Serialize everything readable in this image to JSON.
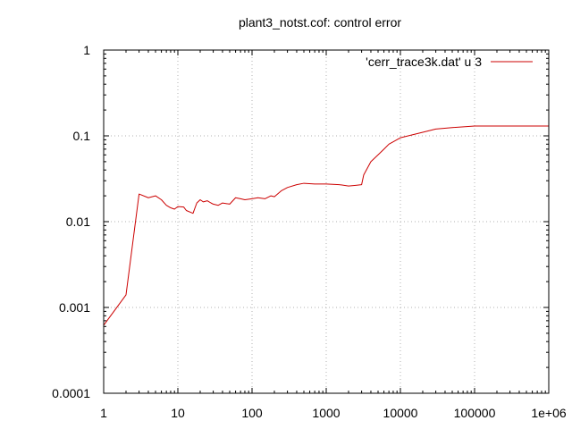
{
  "chart_data": {
    "type": "line",
    "title": "plant3_notst.cof: control error",
    "xlabel": "",
    "ylabel": "",
    "x_scale": "log",
    "y_scale": "log",
    "xlim": [
      1,
      1000000
    ],
    "ylim": [
      0.0001,
      1
    ],
    "grid": true,
    "legend_position": "top-right",
    "x_ticks": [
      {
        "value": 1,
        "label": "1"
      },
      {
        "value": 10,
        "label": "10"
      },
      {
        "value": 100,
        "label": "100"
      },
      {
        "value": 1000,
        "label": "1000"
      },
      {
        "value": 10000,
        "label": "10000"
      },
      {
        "value": 100000,
        "label": "100000"
      },
      {
        "value": 1000000,
        "label": "1e+06"
      }
    ],
    "y_ticks": [
      {
        "value": 0.0001,
        "label": "0.0001"
      },
      {
        "value": 0.001,
        "label": "0.001"
      },
      {
        "value": 0.01,
        "label": "0.01"
      },
      {
        "value": 0.1,
        "label": "0.1"
      },
      {
        "value": 1,
        "label": "1"
      }
    ],
    "series": [
      {
        "name": "'cerr_trace3k.dat' u 3",
        "color": "#cc0000",
        "points": [
          [
            1,
            0.00062
          ],
          [
            2,
            0.0014
          ],
          [
            3,
            0.021
          ],
          [
            4,
            0.019
          ],
          [
            5,
            0.02
          ],
          [
            6,
            0.018
          ],
          [
            7,
            0.0155
          ],
          [
            8,
            0.0145
          ],
          [
            9,
            0.014
          ],
          [
            10,
            0.015
          ],
          [
            12,
            0.0148
          ],
          [
            13,
            0.0135
          ],
          [
            15,
            0.0128
          ],
          [
            16,
            0.0125
          ],
          [
            18,
            0.0165
          ],
          [
            20,
            0.018
          ],
          [
            22,
            0.017
          ],
          [
            25,
            0.0175
          ],
          [
            28,
            0.0165
          ],
          [
            30,
            0.016
          ],
          [
            35,
            0.0155
          ],
          [
            40,
            0.0165
          ],
          [
            50,
            0.016
          ],
          [
            60,
            0.019
          ],
          [
            70,
            0.0185
          ],
          [
            80,
            0.018
          ],
          [
            100,
            0.0185
          ],
          [
            120,
            0.019
          ],
          [
            150,
            0.0185
          ],
          [
            180,
            0.02
          ],
          [
            200,
            0.0195
          ],
          [
            250,
            0.023
          ],
          [
            300,
            0.025
          ],
          [
            400,
            0.027
          ],
          [
            500,
            0.028
          ],
          [
            700,
            0.0275
          ],
          [
            1000,
            0.0275
          ],
          [
            1500,
            0.027
          ],
          [
            2000,
            0.026
          ],
          [
            2500,
            0.0265
          ],
          [
            3000,
            0.027
          ],
          [
            3200,
            0.035
          ],
          [
            4000,
            0.05
          ],
          [
            5000,
            0.06
          ],
          [
            6000,
            0.07
          ],
          [
            7000,
            0.08
          ],
          [
            10000,
            0.095
          ],
          [
            20000,
            0.11
          ],
          [
            30000,
            0.12
          ],
          [
            50000,
            0.125
          ],
          [
            100000,
            0.13
          ],
          [
            300000,
            0.13
          ],
          [
            1000000,
            0.13
          ]
        ]
      }
    ]
  }
}
